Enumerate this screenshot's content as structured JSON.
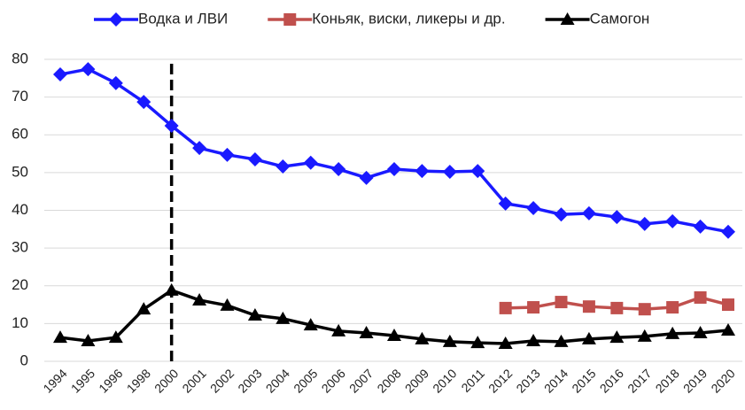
{
  "chart_data": {
    "type": "line",
    "categories": [
      "1994",
      "1995",
      "1996",
      "1998",
      "2000",
      "2001",
      "2002",
      "2003",
      "2004",
      "2005",
      "2006",
      "2007",
      "2008",
      "2009",
      "2010",
      "2011",
      "2012",
      "2013",
      "2014",
      "2015",
      "2016",
      "2017",
      "2018",
      "2019",
      "2020"
    ],
    "series": [
      {
        "name": "Водка и ЛВИ",
        "color": "#1a1aff",
        "marker": "diamond",
        "values": [
          76.0,
          77.4,
          73.7,
          68.7,
          62.4,
          56.5,
          54.7,
          53.5,
          51.6,
          52.6,
          50.9,
          48.6,
          50.9,
          50.4,
          50.2,
          50.4,
          41.8,
          40.6,
          38.9,
          39.2,
          38.2,
          36.4,
          37.1,
          35.7,
          34.3
        ]
      },
      {
        "name": "Коньяк, виски, ликеры и др.",
        "color": "#c0504d",
        "marker": "square",
        "values": [
          null,
          null,
          null,
          null,
          null,
          null,
          null,
          null,
          null,
          null,
          null,
          null,
          null,
          null,
          null,
          null,
          14.1,
          14.3,
          15.7,
          14.5,
          14.1,
          13.8,
          14.3,
          16.9,
          15.0
        ]
      },
      {
        "name": "Самогон",
        "color": "#000000",
        "marker": "triangle",
        "values": [
          6.3,
          5.4,
          6.3,
          13.8,
          18.8,
          16.2,
          14.8,
          12.2,
          11.3,
          9.6,
          8.0,
          7.5,
          6.8,
          5.9,
          5.2,
          4.9,
          4.7,
          5.4,
          5.2,
          5.9,
          6.3,
          6.6,
          7.3,
          7.5,
          8.2
        ]
      }
    ],
    "ylim": [
      0,
      80
    ],
    "yticks": [
      0,
      10,
      20,
      30,
      40,
      50,
      60,
      70,
      80
    ],
    "grid": true,
    "legend": "top",
    "vline": {
      "x": "2000",
      "style": "dashed",
      "color": "#000000"
    }
  }
}
